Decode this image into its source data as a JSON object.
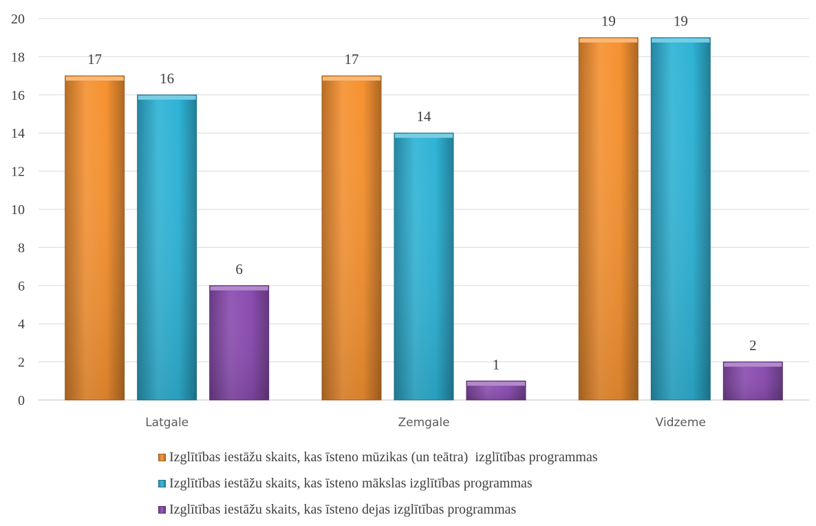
{
  "chart_data": {
    "type": "bar",
    "categories": [
      "Latgale",
      "Zemgale",
      "Vidzeme"
    ],
    "series": [
      {
        "name": "Izglītības iestāžu skaits, kas īsteno mūzikas (un teātra)  izglītības programmas",
        "values": [
          17,
          17,
          19
        ],
        "color": "#F59130"
      },
      {
        "name": "Izglītības iestāžu skaits, kas īsteno mākslas izglītības programmas",
        "values": [
          16,
          14,
          19
        ],
        "color": "#2EB3D6"
      },
      {
        "name": "Izglītības iestāžu skaits, kas īsteno dejas izglītības programmas",
        "values": [
          6,
          1,
          2
        ],
        "color": "#8A4BB0"
      }
    ],
    "ylim": [
      0,
      20
    ],
    "yticks": [
      "0",
      "2",
      "4",
      "6",
      "8",
      "10",
      "12",
      "14",
      "16",
      "18",
      "20"
    ],
    "data_labels": true,
    "grid": true,
    "legend_position": "bottom"
  }
}
